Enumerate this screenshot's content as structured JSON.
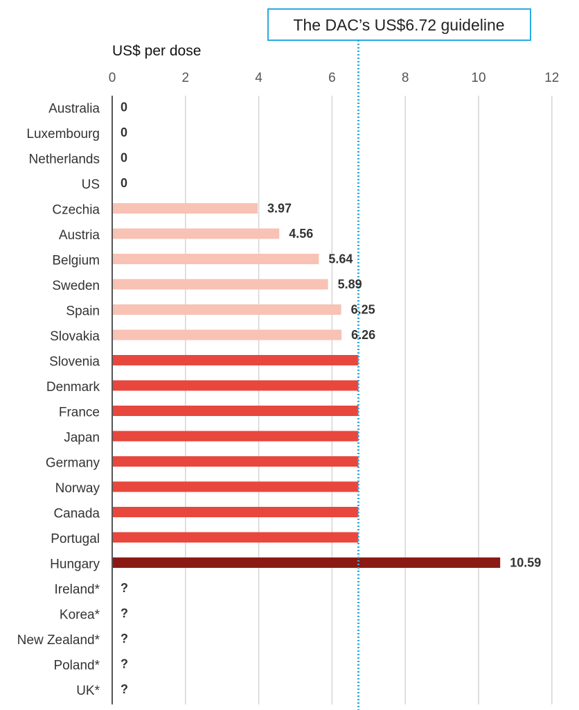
{
  "chart_data": {
    "type": "bar",
    "orientation": "horizontal",
    "unit_label": "US$ per dose",
    "xlim": [
      0,
      12
    ],
    "xticks": [
      0,
      2,
      4,
      6,
      8,
      10,
      12
    ],
    "grid": true,
    "guideline": {
      "label": "The DAC’s US$6.72 guideline",
      "value": 6.72,
      "color": "#29abe2"
    },
    "colors": {
      "light": "#f8c2b4",
      "medium": "#e8473d",
      "dark": "#8b1a14",
      "axis": "#555555",
      "grid": "#d4d4d4"
    },
    "categories": [
      "Australia",
      "Luxembourg",
      "Netherlands",
      "US",
      "Czechia",
      "Austria",
      "Belgium",
      "Sweden",
      "Spain",
      "Slovakia",
      "Slovenia",
      "Denmark",
      "France",
      "Japan",
      "Germany",
      "Norway",
      "Canada",
      "Portugal",
      "Hungary",
      "Ireland*",
      "Korea*",
      "New Zealand*",
      "Poland*",
      "UK*"
    ],
    "values": [
      0,
      0,
      0,
      0,
      3.97,
      4.56,
      5.64,
      5.89,
      6.25,
      6.26,
      6.72,
      6.72,
      6.72,
      6.72,
      6.72,
      6.72,
      6.72,
      6.72,
      10.59,
      null,
      null,
      null,
      null,
      null
    ],
    "value_labels": [
      "0",
      "0",
      "0",
      "0",
      "3.97",
      "4.56",
      "5.64",
      "5.89",
      "6.25",
      "6.26",
      "",
      "",
      "",
      "",
      "",
      "",
      "",
      "",
      "10.59",
      "?",
      "?",
      "?",
      "?",
      "?"
    ],
    "bar_color_groups": [
      "none",
      "none",
      "none",
      "none",
      "light",
      "light",
      "light",
      "light",
      "light",
      "light",
      "medium",
      "medium",
      "medium",
      "medium",
      "medium",
      "medium",
      "medium",
      "medium",
      "dark",
      "none",
      "none",
      "none",
      "none",
      "none"
    ]
  }
}
